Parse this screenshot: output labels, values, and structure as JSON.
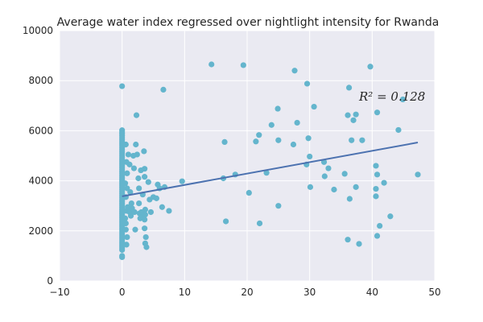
{
  "chart_data": {
    "type": "scatter",
    "title": "Average water index regressed over nightlight intensity for Rwanda",
    "xlabel": "",
    "ylabel": "",
    "xlim": [
      -10,
      50
    ],
    "ylim": [
      0,
      10000
    ],
    "xticks": [
      "−10",
      "0",
      "10",
      "20",
      "30",
      "40",
      "50"
    ],
    "yticks": [
      "0",
      "2000",
      "4000",
      "6000",
      "8000",
      "10000"
    ],
    "grid": true,
    "annotation": "R² = 0.128",
    "colors": {
      "points": "#64b5cd",
      "line": "#4c72b0",
      "background": "#eaeaf2",
      "grid": "#ffffff"
    },
    "regression": {
      "x": [
        0,
        47.3
      ],
      "y": [
        3380,
        5530
      ]
    },
    "points": [
      [
        0,
        7780
      ],
      [
        0,
        6020
      ],
      [
        0,
        5950
      ],
      [
        0,
        5880
      ],
      [
        0,
        5800
      ],
      [
        0,
        5720
      ],
      [
        0,
        5640
      ],
      [
        0,
        5560
      ],
      [
        0,
        5480
      ],
      [
        0,
        5400
      ],
      [
        0,
        5320
      ],
      [
        0,
        5240
      ],
      [
        0,
        5160
      ],
      [
        0,
        5080
      ],
      [
        0,
        5000
      ],
      [
        0,
        4920
      ],
      [
        0,
        4840
      ],
      [
        0,
        4760
      ],
      [
        0,
        4680
      ],
      [
        0,
        4600
      ],
      [
        0,
        4520
      ],
      [
        0,
        4440
      ],
      [
        0,
        4360
      ],
      [
        0,
        4280
      ],
      [
        0,
        4200
      ],
      [
        0,
        4120
      ],
      [
        0,
        4040
      ],
      [
        0,
        3960
      ],
      [
        0,
        3880
      ],
      [
        0,
        3800
      ],
      [
        0,
        3720
      ],
      [
        0,
        3640
      ],
      [
        0,
        3560
      ],
      [
        0,
        3480
      ],
      [
        0,
        3400
      ],
      [
        0,
        3320
      ],
      [
        0,
        3240
      ],
      [
        0,
        3160
      ],
      [
        0,
        3080
      ],
      [
        0,
        3000
      ],
      [
        0,
        2920
      ],
      [
        0,
        2840
      ],
      [
        0,
        2760
      ],
      [
        0,
        2680
      ],
      [
        0,
        2600
      ],
      [
        0,
        2520
      ],
      [
        0,
        2440
      ],
      [
        0,
        2360
      ],
      [
        0,
        2280
      ],
      [
        0,
        2200
      ],
      [
        0,
        2120
      ],
      [
        0,
        2040
      ],
      [
        0,
        1960
      ],
      [
        0,
        1880
      ],
      [
        0,
        1800
      ],
      [
        0,
        1720
      ],
      [
        0,
        1640
      ],
      [
        0,
        1560
      ],
      [
        0,
        1480
      ],
      [
        0,
        1400
      ],
      [
        0,
        1320
      ],
      [
        0,
        1240
      ],
      [
        0,
        1000
      ],
      [
        0,
        950
      ],
      [
        0.6,
        5450
      ],
      [
        0.7,
        4750
      ],
      [
        0.8,
        4300
      ],
      [
        0.8,
        3700
      ],
      [
        0.5,
        3900
      ],
      [
        0.6,
        3350
      ],
      [
        0.7,
        2800
      ],
      [
        0.5,
        2500
      ],
      [
        0.6,
        2300
      ],
      [
        0.8,
        1750
      ],
      [
        0.7,
        1450
      ],
      [
        0.6,
        2050
      ],
      [
        0.9,
        2950
      ],
      [
        1,
        5050
      ],
      [
        1.2,
        4650
      ],
      [
        1.3,
        3550
      ],
      [
        1.2,
        2750
      ],
      [
        1.4,
        2600
      ],
      [
        1.5,
        3100
      ],
      [
        1.6,
        2900
      ],
      [
        1.8,
        5000
      ],
      [
        1.9,
        4500
      ],
      [
        2,
        2750
      ],
      [
        2.1,
        2050
      ],
      [
        2.2,
        5450
      ],
      [
        2.3,
        6620
      ],
      [
        2.4,
        5050
      ],
      [
        2.6,
        4100
      ],
      [
        2.7,
        3700
      ],
      [
        2.7,
        3100
      ],
      [
        2.8,
        2700
      ],
      [
        2.9,
        2500
      ],
      [
        3,
        4420
      ],
      [
        3.1,
        2750
      ],
      [
        3.2,
        2550
      ],
      [
        3.3,
        3450
      ],
      [
        3.5,
        5180
      ],
      [
        3.6,
        4480
      ],
      [
        3.6,
        4160
      ],
      [
        3.7,
        2850
      ],
      [
        3.7,
        2650
      ],
      [
        3.6,
        2450
      ],
      [
        3.6,
        2100
      ],
      [
        3.7,
        1500
      ],
      [
        3.9,
        1350
      ],
      [
        3.8,
        1750
      ],
      [
        4.2,
        3950
      ],
      [
        4.4,
        3250
      ],
      [
        4.6,
        2750
      ],
      [
        5,
        3350
      ],
      [
        5.5,
        3300
      ],
      [
        5.7,
        3850
      ],
      [
        6,
        3700
      ],
      [
        6.4,
        2950
      ],
      [
        6.6,
        7640
      ],
      [
        6.8,
        3750
      ],
      [
        7.5,
        2800
      ],
      [
        9.6,
        3980
      ],
      [
        14.3,
        8650
      ],
      [
        16.2,
        4100
      ],
      [
        16.4,
        5550
      ],
      [
        16.6,
        2380
      ],
      [
        18.1,
        4250
      ],
      [
        19.4,
        8620
      ],
      [
        20.3,
        3520
      ],
      [
        21.4,
        5570
      ],
      [
        21.9,
        5830
      ],
      [
        22,
        2300
      ],
      [
        23.1,
        4320
      ],
      [
        23.9,
        6230
      ],
      [
        24.9,
        6880
      ],
      [
        25,
        5620
      ],
      [
        25,
        3000
      ],
      [
        27.4,
        5450
      ],
      [
        27.6,
        8400
      ],
      [
        28,
        6320
      ],
      [
        29.5,
        4650
      ],
      [
        29.6,
        7880
      ],
      [
        29.8,
        5700
      ],
      [
        30,
        4970
      ],
      [
        30.1,
        3750
      ],
      [
        30.7,
        6960
      ],
      [
        32.3,
        4750
      ],
      [
        32.4,
        4180
      ],
      [
        33,
        4500
      ],
      [
        33.9,
        3650
      ],
      [
        35.6,
        4280
      ],
      [
        36.1,
        6620
      ],
      [
        36.1,
        1650
      ],
      [
        36.3,
        7720
      ],
      [
        36.4,
        3280
      ],
      [
        36.7,
        5620
      ],
      [
        37,
        6420
      ],
      [
        37.4,
        6650
      ],
      [
        37.4,
        3750
      ],
      [
        37.9,
        1480
      ],
      [
        38.4,
        5620
      ],
      [
        39.7,
        8560
      ],
      [
        40.6,
        4600
      ],
      [
        40.6,
        3680
      ],
      [
        40.6,
        3380
      ],
      [
        40.8,
        6730
      ],
      [
        40.8,
        4250
      ],
      [
        40.8,
        1800
      ],
      [
        41.2,
        2200
      ],
      [
        41.9,
        3920
      ],
      [
        42.9,
        2580
      ],
      [
        44.2,
        6030
      ],
      [
        44.9,
        7250
      ],
      [
        47.3,
        4250
      ]
    ]
  }
}
